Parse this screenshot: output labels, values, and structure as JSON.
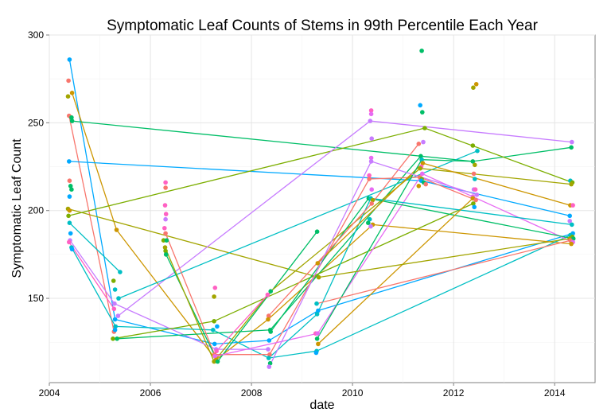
{
  "chart_data": {
    "type": "scatter",
    "title": "Symptomatic Leaf Counts of Stems in 99th Percentile Each Year",
    "xlabel": "date",
    "ylabel": "Symptomatic Leaf Count",
    "xlim": [
      2004.0,
      2014.8
    ],
    "ylim": [
      102,
      300
    ],
    "x_ticks": [
      2004,
      2006,
      2008,
      2010,
      2012,
      2014
    ],
    "x_tick_labels": [
      "2004",
      "2006",
      "2008",
      "2010",
      "2012",
      "2014"
    ],
    "y_ticks": [
      150,
      200,
      250,
      300
    ],
    "y_tick_labels": [
      "150",
      "200",
      "250",
      "300"
    ],
    "grid": true,
    "legend": "none",
    "points": [
      {
        "x": 2004.37,
        "y": 265,
        "color": "#A3A500"
      },
      {
        "x": 2004.38,
        "y": 274,
        "color": "#F8766D"
      },
      {
        "x": 2004.4,
        "y": 286,
        "color": "#00A9FF"
      },
      {
        "x": 2004.39,
        "y": 254,
        "color": "#F8766D"
      },
      {
        "x": 2004.45,
        "y": 267,
        "color": "#CD9600"
      },
      {
        "x": 2004.44,
        "y": 253,
        "color": "#00BE67"
      },
      {
        "x": 2004.45,
        "y": 251,
        "color": "#00BE67"
      },
      {
        "x": 2004.39,
        "y": 228,
        "color": "#00A9FF"
      },
      {
        "x": 2004.4,
        "y": 217,
        "color": "#F8766D"
      },
      {
        "x": 2004.42,
        "y": 214,
        "color": "#00BE67"
      },
      {
        "x": 2004.44,
        "y": 212,
        "color": "#00BE67"
      },
      {
        "x": 2004.4,
        "y": 208,
        "color": "#00A9FF"
      },
      {
        "x": 2004.37,
        "y": 201,
        "color": "#A3A500"
      },
      {
        "x": 2004.4,
        "y": 200,
        "color": "#CD9600"
      },
      {
        "x": 2004.38,
        "y": 197,
        "color": "#7CAE00"
      },
      {
        "x": 2004.4,
        "y": 193,
        "color": "#00BFC4"
      },
      {
        "x": 2004.42,
        "y": 187,
        "color": "#00A9FF"
      },
      {
        "x": 2004.41,
        "y": 183,
        "color": "#C77CFF"
      },
      {
        "x": 2004.39,
        "y": 182,
        "color": "#FF61C3"
      },
      {
        "x": 2004.44,
        "y": 179,
        "color": "#00BFC4"
      },
      {
        "x": 2004.45,
        "y": 178,
        "color": "#00A9FF"
      },
      {
        "x": 2005.27,
        "y": 160,
        "color": "#7CAE00"
      },
      {
        "x": 2005.3,
        "y": 155,
        "color": "#00BFC4"
      },
      {
        "x": 2005.29,
        "y": 147,
        "color": "#C77CFF"
      },
      {
        "x": 2005.28,
        "y": 144,
        "color": "#FF61C3"
      },
      {
        "x": 2005.3,
        "y": 138,
        "color": "#00A9FF"
      },
      {
        "x": 2005.31,
        "y": 134,
        "color": "#00BFC4"
      },
      {
        "x": 2005.28,
        "y": 131,
        "color": "#F8766D"
      },
      {
        "x": 2005.3,
        "y": 132,
        "color": "#00A9FF"
      },
      {
        "x": 2005.33,
        "y": 189,
        "color": "#CD9600"
      },
      {
        "x": 2005.4,
        "y": 165,
        "color": "#00BFC4"
      },
      {
        "x": 2005.37,
        "y": 150,
        "color": "#00BFC4"
      },
      {
        "x": 2005.36,
        "y": 140,
        "color": "#C77CFF"
      },
      {
        "x": 2005.26,
        "y": 127,
        "color": "#7CAE00"
      },
      {
        "x": 2005.34,
        "y": 127,
        "color": "#00BE67"
      },
      {
        "x": 2006.3,
        "y": 216,
        "color": "#FF61C3"
      },
      {
        "x": 2006.3,
        "y": 213,
        "color": "#F8766D"
      },
      {
        "x": 2006.29,
        "y": 203,
        "color": "#FF61C3"
      },
      {
        "x": 2006.31,
        "y": 198,
        "color": "#FF61C3"
      },
      {
        "x": 2006.3,
        "y": 195,
        "color": "#C77CFF"
      },
      {
        "x": 2006.28,
        "y": 190,
        "color": "#FF61C3"
      },
      {
        "x": 2006.3,
        "y": 187,
        "color": "#F8766D"
      },
      {
        "x": 2006.26,
        "y": 183,
        "color": "#7CAE00"
      },
      {
        "x": 2006.32,
        "y": 183,
        "color": "#00BE67"
      },
      {
        "x": 2006.29,
        "y": 179,
        "color": "#A3A500"
      },
      {
        "x": 2006.3,
        "y": 177,
        "color": "#7CAE00"
      },
      {
        "x": 2006.31,
        "y": 175,
        "color": "#00BE67"
      },
      {
        "x": 2007.28,
        "y": 156,
        "color": "#FF61C3"
      },
      {
        "x": 2007.26,
        "y": 151,
        "color": "#A3A500"
      },
      {
        "x": 2007.26,
        "y": 137,
        "color": "#7CAE00"
      },
      {
        "x": 2007.32,
        "y": 134,
        "color": "#00A9FF"
      },
      {
        "x": 2007.24,
        "y": 132,
        "color": "#00BFC4"
      },
      {
        "x": 2007.27,
        "y": 124,
        "color": "#00A9FF"
      },
      {
        "x": 2007.3,
        "y": 121,
        "color": "#C77CFF"
      },
      {
        "x": 2007.31,
        "y": 120,
        "color": "#FF61C3"
      },
      {
        "x": 2007.27,
        "y": 118,
        "color": "#F8766D"
      },
      {
        "x": 2007.28,
        "y": 117,
        "color": "#E76BF3"
      },
      {
        "x": 2007.3,
        "y": 115,
        "color": "#CD9600"
      },
      {
        "x": 2007.26,
        "y": 114,
        "color": "#A3A500"
      },
      {
        "x": 2007.33,
        "y": 114,
        "color": "#00BE67"
      },
      {
        "x": 2008.32,
        "y": 152,
        "color": "#FF61C3"
      },
      {
        "x": 2008.38,
        "y": 154,
        "color": "#00BE67"
      },
      {
        "x": 2008.34,
        "y": 140,
        "color": "#F8766D"
      },
      {
        "x": 2008.33,
        "y": 138,
        "color": "#CD9600"
      },
      {
        "x": 2008.37,
        "y": 132,
        "color": "#00BE67"
      },
      {
        "x": 2008.38,
        "y": 131,
        "color": "#00BE67"
      },
      {
        "x": 2008.35,
        "y": 126,
        "color": "#00A9FF"
      },
      {
        "x": 2008.33,
        "y": 121,
        "color": "#C77CFF"
      },
      {
        "x": 2008.36,
        "y": 118,
        "color": "#F8766D"
      },
      {
        "x": 2008.34,
        "y": 116,
        "color": "#00BFC4"
      },
      {
        "x": 2008.37,
        "y": 113,
        "color": "#00BE67"
      },
      {
        "x": 2008.35,
        "y": 111,
        "color": "#C77CFF"
      },
      {
        "x": 2009.3,
        "y": 188,
        "color": "#00BE67"
      },
      {
        "x": 2009.31,
        "y": 170,
        "color": "#CD9600"
      },
      {
        "x": 2009.33,
        "y": 162,
        "color": "#A3A500"
      },
      {
        "x": 2009.29,
        "y": 147,
        "color": "#00BFC4"
      },
      {
        "x": 2009.32,
        "y": 143,
        "color": "#00A9FF"
      },
      {
        "x": 2009.3,
        "y": 141,
        "color": "#00BFC4"
      },
      {
        "x": 2009.27,
        "y": 130,
        "color": "#FF61C3"
      },
      {
        "x": 2009.31,
        "y": 130,
        "color": "#E76BF3"
      },
      {
        "x": 2009.3,
        "y": 127,
        "color": "#00BE67"
      },
      {
        "x": 2009.32,
        "y": 124,
        "color": "#CD9600"
      },
      {
        "x": 2009.29,
        "y": 120,
        "color": "#00BFC4"
      },
      {
        "x": 2009.28,
        "y": 119,
        "color": "#00A9FF"
      },
      {
        "x": 2010.37,
        "y": 257,
        "color": "#FF61C3"
      },
      {
        "x": 2010.37,
        "y": 255,
        "color": "#E76BF3"
      },
      {
        "x": 2010.35,
        "y": 251,
        "color": "#C77CFF"
      },
      {
        "x": 2010.38,
        "y": 241,
        "color": "#C77CFF"
      },
      {
        "x": 2010.37,
        "y": 230,
        "color": "#E76BF3"
      },
      {
        "x": 2010.37,
        "y": 228,
        "color": "#C77CFF"
      },
      {
        "x": 2010.33,
        "y": 220,
        "color": "#FF61C3"
      },
      {
        "x": 2010.33,
        "y": 218,
        "color": "#F8766D"
      },
      {
        "x": 2010.38,
        "y": 212,
        "color": "#E76BF3"
      },
      {
        "x": 2010.32,
        "y": 207,
        "color": "#00BE67"
      },
      {
        "x": 2010.36,
        "y": 207,
        "color": "#00BFC4"
      },
      {
        "x": 2010.4,
        "y": 206,
        "color": "#A3A500"
      },
      {
        "x": 2010.38,
        "y": 204,
        "color": "#F8766D"
      },
      {
        "x": 2010.34,
        "y": 195,
        "color": "#00BFC4"
      },
      {
        "x": 2010.31,
        "y": 193,
        "color": "#00BE67"
      },
      {
        "x": 2010.4,
        "y": 192,
        "color": "#CD9600"
      },
      {
        "x": 2010.36,
        "y": 191,
        "color": "#C77CFF"
      },
      {
        "x": 2011.37,
        "y": 291,
        "color": "#00BE67"
      },
      {
        "x": 2011.34,
        "y": 260,
        "color": "#00A9FF"
      },
      {
        "x": 2011.38,
        "y": 256,
        "color": "#00BE67"
      },
      {
        "x": 2011.43,
        "y": 247,
        "color": "#7CAE00"
      },
      {
        "x": 2011.31,
        "y": 238,
        "color": "#F8766D"
      },
      {
        "x": 2011.4,
        "y": 239,
        "color": "#C77CFF"
      },
      {
        "x": 2011.35,
        "y": 231,
        "color": "#00BE67"
      },
      {
        "x": 2011.37,
        "y": 229,
        "color": "#00BFC4"
      },
      {
        "x": 2011.39,
        "y": 227,
        "color": "#CD9600"
      },
      {
        "x": 2011.36,
        "y": 225,
        "color": "#FF61C3"
      },
      {
        "x": 2011.34,
        "y": 224,
        "color": "#A3A500"
      },
      {
        "x": 2011.38,
        "y": 221,
        "color": "#E76BF3"
      },
      {
        "x": 2011.33,
        "y": 219,
        "color": "#F8766D"
      },
      {
        "x": 2011.37,
        "y": 218,
        "color": "#7CAE00"
      },
      {
        "x": 2011.36,
        "y": 217,
        "color": "#00A9FF"
      },
      {
        "x": 2011.41,
        "y": 216,
        "color": "#00BE67"
      },
      {
        "x": 2011.31,
        "y": 214,
        "color": "#CD9600"
      },
      {
        "x": 2011.45,
        "y": 215,
        "color": "#F8766D"
      },
      {
        "x": 2012.39,
        "y": 270,
        "color": "#A3A500"
      },
      {
        "x": 2012.45,
        "y": 272,
        "color": "#CD9600"
      },
      {
        "x": 2012.38,
        "y": 237,
        "color": "#7CAE00"
      },
      {
        "x": 2012.47,
        "y": 234,
        "color": "#00BFC4"
      },
      {
        "x": 2012.38,
        "y": 228,
        "color": "#00BE67"
      },
      {
        "x": 2012.42,
        "y": 226,
        "color": "#A3A500"
      },
      {
        "x": 2012.4,
        "y": 221,
        "color": "#F8766D"
      },
      {
        "x": 2012.42,
        "y": 218,
        "color": "#00BFC4"
      },
      {
        "x": 2012.4,
        "y": 212,
        "color": "#C77CFF"
      },
      {
        "x": 2012.43,
        "y": 212,
        "color": "#FF61C3"
      },
      {
        "x": 2012.38,
        "y": 208,
        "color": "#E76BF3"
      },
      {
        "x": 2012.46,
        "y": 209,
        "color": "#C77CFF"
      },
      {
        "x": 2012.38,
        "y": 207,
        "color": "#CD9600"
      },
      {
        "x": 2012.44,
        "y": 206,
        "color": "#F8766D"
      },
      {
        "x": 2012.39,
        "y": 204,
        "color": "#7CAE00"
      },
      {
        "x": 2012.41,
        "y": 202,
        "color": "#00A9FF"
      },
      {
        "x": 2014.34,
        "y": 239,
        "color": "#C77CFF"
      },
      {
        "x": 2014.33,
        "y": 236,
        "color": "#00BE67"
      },
      {
        "x": 2014.31,
        "y": 217,
        "color": "#00BFC4"
      },
      {
        "x": 2014.35,
        "y": 216,
        "color": "#7CAE00"
      },
      {
        "x": 2014.33,
        "y": 215,
        "color": "#A3A500"
      },
      {
        "x": 2014.31,
        "y": 203,
        "color": "#CD9600"
      },
      {
        "x": 2014.36,
        "y": 203,
        "color": "#FF61C3"
      },
      {
        "x": 2014.3,
        "y": 197,
        "color": "#00A9FF"
      },
      {
        "x": 2014.3,
        "y": 194,
        "color": "#C77CFF"
      },
      {
        "x": 2014.34,
        "y": 192,
        "color": "#00BFC4"
      },
      {
        "x": 2014.36,
        "y": 187,
        "color": "#00A9FF"
      },
      {
        "x": 2014.31,
        "y": 186,
        "color": "#00BFC4"
      },
      {
        "x": 2014.35,
        "y": 185,
        "color": "#7CAE00"
      },
      {
        "x": 2014.3,
        "y": 184,
        "color": "#A3A500"
      },
      {
        "x": 2014.37,
        "y": 184,
        "color": "#00BE67"
      },
      {
        "x": 2014.31,
        "y": 183,
        "color": "#F8766D"
      },
      {
        "x": 2014.36,
        "y": 182,
        "color": "#E76BF3"
      },
      {
        "x": 2014.33,
        "y": 181,
        "color": "#CD9600"
      }
    ],
    "lines": [
      {
        "color": "#00A9FF",
        "x": [
          2004.4,
          2005.3,
          2007.27,
          2008.35,
          2009.32,
          2014.36
        ],
        "y": [
          286,
          138,
          124,
          126,
          143,
          187
        ]
      },
      {
        "color": "#F8766D",
        "x": [
          2004.39,
          2005.28
        ],
        "y": [
          254,
          131
        ]
      },
      {
        "color": "#CD9600",
        "x": [
          2004.45,
          2005.33,
          2007.3,
          2008.33,
          2010.4,
          2014.33
        ],
        "y": [
          267,
          189,
          115,
          138,
          192,
          181
        ]
      },
      {
        "color": "#00BE67",
        "x": [
          2004.45,
          2012.38,
          2014.33
        ],
        "y": [
          251,
          228,
          236
        ]
      },
      {
        "color": "#00A9FF",
        "x": [
          2004.39,
          2011.36,
          2014.3
        ],
        "y": [
          228,
          217,
          197
        ]
      },
      {
        "color": "#A3A500",
        "x": [
          2004.37,
          2009.33
        ],
        "y": [
          201,
          162
        ]
      },
      {
        "color": "#7CAE00",
        "x": [
          2004.38,
          2011.43,
          2014.35
        ],
        "y": [
          197,
          247,
          216
        ]
      },
      {
        "color": "#00BFC4",
        "x": [
          2004.4,
          2005.4
        ],
        "y": [
          193,
          165
        ]
      },
      {
        "color": "#00BFC4",
        "x": [
          2004.44,
          2005.31,
          2007.24,
          2008.34,
          2009.29,
          2014.31
        ],
        "y": [
          179,
          134,
          132,
          116,
          120,
          186
        ]
      },
      {
        "color": "#C77CFF",
        "x": [
          2004.41,
          2005.29,
          2007.3,
          2008.33
        ],
        "y": [
          183,
          147,
          121,
          121
        ]
      },
      {
        "color": "#FF61C3",
        "x": [
          2004.39,
          2005.28
        ],
        "y": [
          182,
          144
        ]
      },
      {
        "color": "#00BE67",
        "x": [
          2005.34,
          2008.37,
          2011.35
        ],
        "y": [
          127,
          132,
          231
        ]
      },
      {
        "color": "#7CAE00",
        "x": [
          2005.26,
          2007.26,
          2012.39
        ],
        "y": [
          127,
          137,
          204
        ]
      },
      {
        "color": "#C77CFF",
        "x": [
          2005.36,
          2010.35,
          2014.34
        ],
        "y": [
          140,
          251,
          239
        ]
      },
      {
        "color": "#00BFC4",
        "x": [
          2005.37,
          2012.47
        ],
        "y": [
          150,
          234
        ]
      },
      {
        "color": "#F8766D",
        "x": [
          2006.3,
          2007.27,
          2008.36,
          2010.33,
          2011.33,
          2012.44
        ],
        "y": [
          187,
          118,
          118,
          218,
          219,
          206
        ]
      },
      {
        "color": "#00BE67",
        "x": [
          2006.31,
          2007.33,
          2009.3
        ],
        "y": [
          175,
          114,
          188
        ]
      },
      {
        "color": "#A3A500",
        "x": [
          2006.29,
          2007.26,
          2008.38,
          2011.34,
          2014.33
        ],
        "y": [
          179,
          114,
          154,
          224,
          215
        ]
      },
      {
        "color": "#FF61C3",
        "x": [
          2007.31,
          2008.32
        ],
        "y": [
          120,
          152
        ]
      },
      {
        "color": "#E76BF3",
        "x": [
          2007.28,
          2009.31,
          2011.38,
          2014.36
        ],
        "y": [
          117,
          130,
          221,
          182
        ]
      },
      {
        "color": "#00BE67",
        "x": [
          2008.38,
          2010.32,
          2014.37
        ],
        "y": [
          131,
          207,
          184
        ]
      },
      {
        "color": "#00BFC4",
        "x": [
          2008.34,
          2009.3,
          2010.36,
          2014.34
        ],
        "y": [
          116,
          141,
          207,
          192
        ]
      },
      {
        "color": "#CD9600",
        "x": [
          2009.31,
          2011.39,
          2014.31
        ],
        "y": [
          170,
          227,
          203
        ]
      },
      {
        "color": "#CD9600",
        "x": [
          2009.32,
          2012.38
        ],
        "y": [
          124,
          207
        ]
      },
      {
        "color": "#00BE67",
        "x": [
          2009.3,
          2011.37,
          2012.38
        ],
        "y": [
          127,
          229,
          228
        ]
      },
      {
        "color": "#F8766D",
        "x": [
          2008.34,
          2010.38,
          2011.31
        ],
        "y": [
          140,
          204,
          238
        ]
      },
      {
        "color": "#C77CFF",
        "x": [
          2008.35,
          2010.37,
          2012.46
        ],
        "y": [
          111,
          228,
          209
        ]
      },
      {
        "color": "#A3A500",
        "x": [
          2009.33,
          2014.3
        ],
        "y": [
          162,
          184
        ]
      },
      {
        "color": "#F8766D",
        "x": [
          2009.29,
          2014.31
        ],
        "y": [
          147,
          183
        ]
      }
    ]
  }
}
